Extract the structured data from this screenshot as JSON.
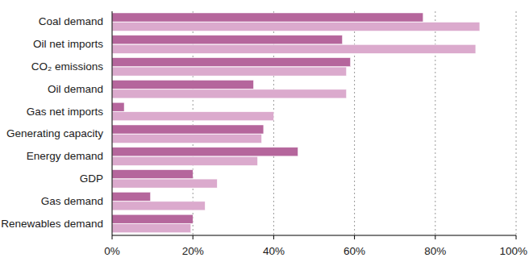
{
  "chart_data": {
    "type": "bar",
    "orientation": "horizontal",
    "categories": [
      "Coal demand",
      "Oil net imports",
      "CO₂ emissions",
      "Oil demand",
      "Gas net imports",
      "Generating capacity",
      "Energy demand",
      "GDP",
      "Gas demand",
      "Renewables demand"
    ],
    "series": [
      {
        "color": "#b5669c",
        "values": [
          77,
          57,
          59,
          35,
          3,
          37.5,
          46,
          20,
          9.5,
          20
        ]
      },
      {
        "color": "#dbaacd",
        "values": [
          91,
          90,
          58,
          58,
          40,
          37,
          36,
          26,
          23,
          19.5
        ]
      }
    ],
    "xlim": [
      0,
      100
    ],
    "xticks": [
      {
        "value": 0,
        "label": "0%"
      },
      {
        "value": 20,
        "label": "20%"
      },
      {
        "value": 40,
        "label": "40%"
      },
      {
        "value": 60,
        "label": "60%"
      },
      {
        "value": 80,
        "label": "80%"
      },
      {
        "value": 100,
        "label": "100%"
      }
    ],
    "grid": true
  }
}
